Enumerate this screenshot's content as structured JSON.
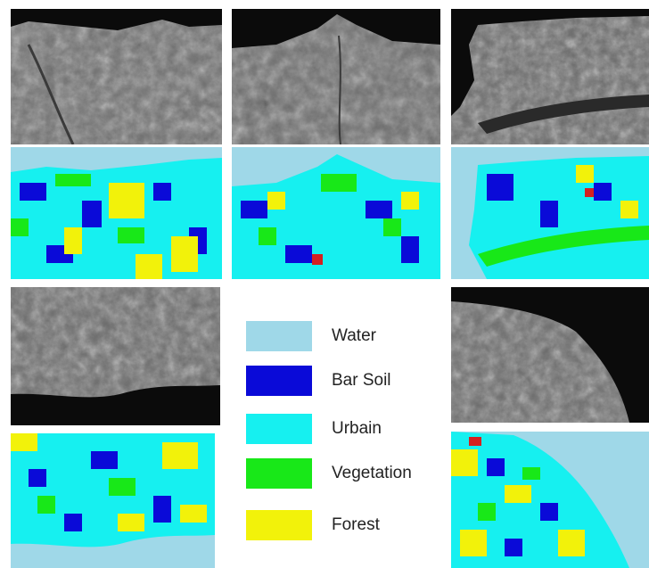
{
  "legend": {
    "items": [
      {
        "label": "Water",
        "color": "#9fd8e8"
      },
      {
        "label": "Bar Soil",
        "color": "#0a0ad8"
      },
      {
        "label": "Urbain",
        "color": "#16f0f0"
      },
      {
        "label": "Vegetation",
        "color": "#18e818"
      },
      {
        "label": "Forest",
        "color": "#f2f20a"
      }
    ]
  },
  "colors": {
    "water": "#9fd8e8",
    "bar_soil": "#0a0ad8",
    "urban": "#16f0f0",
    "vegetation": "#18e818",
    "forest": "#f2f20a",
    "dark_sea": "#0b0b0b",
    "red_patch": "#d42020"
  }
}
